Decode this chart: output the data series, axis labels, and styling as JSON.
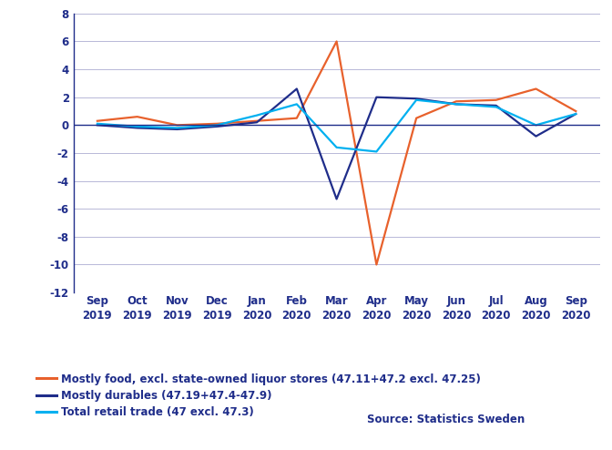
{
  "x_labels": [
    "Sep\n2019",
    "Oct\n2019",
    "Nov\n2019",
    "Dec\n2019",
    "Jan\n2020",
    "Feb\n2020",
    "Mar\n2020",
    "Apr\n2020",
    "May\n2020",
    "Jun\n2020",
    "Jul\n2020",
    "Aug\n2020",
    "Sep\n2020"
  ],
  "series": [
    {
      "name": "Mostly food, excl. state-owned liquor stores (47.11+47.2 excl. 47.25)",
      "color": "#E8612C",
      "values": [
        0.3,
        0.6,
        0.0,
        0.1,
        0.3,
        0.5,
        6.0,
        -10.0,
        0.5,
        1.7,
        1.8,
        2.6,
        1.0
      ]
    },
    {
      "name": "Mostly durables (47.19+47.4-47.9)",
      "color": "#1F2D8A",
      "values": [
        0.0,
        -0.2,
        -0.3,
        -0.1,
        0.2,
        2.6,
        -5.3,
        2.0,
        1.9,
        1.5,
        1.4,
        -0.8,
        0.8
      ]
    },
    {
      "name": "Total retail trade (47 excl. 47.3)",
      "color": "#00B0F0",
      "values": [
        0.1,
        -0.1,
        -0.2,
        0.0,
        0.7,
        1.5,
        -1.6,
        -1.9,
        1.8,
        1.5,
        1.3,
        0.0,
        0.8
      ]
    }
  ],
  "ylim": [
    -12.0,
    8.0
  ],
  "yticks": [
    -12.0,
    -10.0,
    -8.0,
    -6.0,
    -4.0,
    -2.0,
    0.0,
    2.0,
    4.0,
    6.0,
    8.0
  ],
  "source_text": "Source: Statistics Sweden",
  "grid_color": "#B8B8D8",
  "background_color": "#FFFFFF",
  "axis_color": "#1F2D8A",
  "legend_fontsize": 8.5,
  "tick_fontsize": 8.5
}
